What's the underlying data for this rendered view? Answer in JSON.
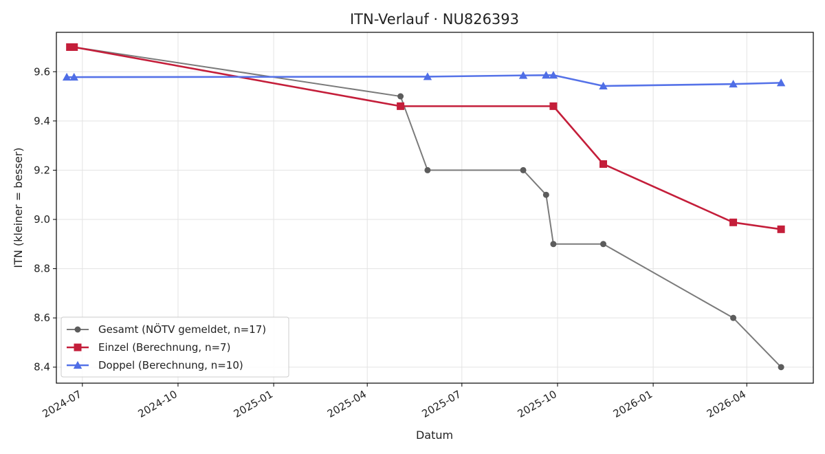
{
  "chart_data": {
    "type": "line",
    "title": "ITN-Verlauf · NU826393",
    "xlabel": "Datum",
    "ylabel": "ITN  (kleiner = besser)",
    "xlim": [
      "2024-06-06",
      "2026-06-04"
    ],
    "ylim": [
      8.335,
      9.76
    ],
    "grid": true,
    "legend_position": "lower-left",
    "x_ticks": [
      "2024-07",
      "2024-10",
      "2025-01",
      "2025-04",
      "2025-07",
      "2025-10",
      "2026-01",
      "2026-04"
    ],
    "y_ticks": [
      8.4,
      8.6,
      8.8,
      9.0,
      9.2,
      9.4,
      9.6
    ],
    "series": [
      {
        "name": "Gesamt (NÖTV gemeldet, n=17)",
        "color": "#5c5c5c",
        "line_color": "#7a7a7a",
        "marker": "circle",
        "points": [
          {
            "x": "2024-06-19",
            "y": 9.7
          },
          {
            "x": "2024-06-23",
            "y": 9.7
          },
          {
            "x": "2025-05-03",
            "y": 9.5
          },
          {
            "x": "2025-05-29",
            "y": 9.2
          },
          {
            "x": "2025-08-29",
            "y": 9.2
          },
          {
            "x": "2025-09-20",
            "y": 9.1
          },
          {
            "x": "2025-09-27",
            "y": 8.9
          },
          {
            "x": "2025-11-14",
            "y": 8.9
          },
          {
            "x": "2026-03-19",
            "y": 8.6
          },
          {
            "x": "2026-05-04",
            "y": 8.4
          }
        ]
      },
      {
        "name": "Einzel (Berechnung, n=7)",
        "color": "#c41e3a",
        "line_color": "#c41e3a",
        "marker": "square",
        "points": [
          {
            "x": "2024-06-19",
            "y": 9.7
          },
          {
            "x": "2024-06-23",
            "y": 9.7
          },
          {
            "x": "2025-05-03",
            "y": 9.46
          },
          {
            "x": "2025-09-27",
            "y": 9.46
          },
          {
            "x": "2025-11-14",
            "y": 9.225
          },
          {
            "x": "2026-03-19",
            "y": 8.988
          },
          {
            "x": "2026-05-04",
            "y": 8.96
          }
        ]
      },
      {
        "name": "Doppel (Berechnung, n=10)",
        "color": "#4f6ee6",
        "line_color": "#5572e8",
        "marker": "triangle",
        "points": [
          {
            "x": "2024-06-16",
            "y": 9.578
          },
          {
            "x": "2024-06-23",
            "y": 9.578
          },
          {
            "x": "2025-05-29",
            "y": 9.58
          },
          {
            "x": "2025-08-29",
            "y": 9.585
          },
          {
            "x": "2025-09-20",
            "y": 9.586
          },
          {
            "x": "2025-09-27",
            "y": 9.586
          },
          {
            "x": "2025-11-14",
            "y": 9.542
          },
          {
            "x": "2026-03-19",
            "y": 9.55
          },
          {
            "x": "2026-05-04",
            "y": 9.555
          }
        ]
      }
    ]
  }
}
